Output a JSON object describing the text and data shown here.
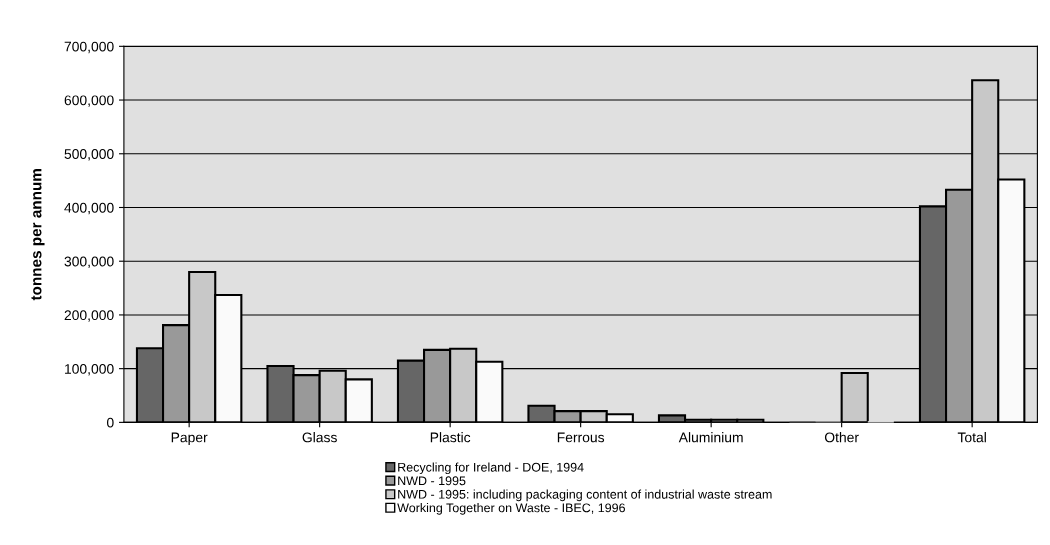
{
  "chart_data": {
    "type": "bar",
    "ylabel": "tonnes per annum",
    "categories": [
      "Paper",
      "Glass",
      "Plastic",
      "Ferrous",
      "Aluminium",
      "Other",
      "Total"
    ],
    "series": [
      {
        "name": "Recycling for Ireland - DOE, 1994",
        "color": "#666666",
        "values": [
          138000,
          105000,
          115000,
          31000,
          13000,
          0,
          402000
        ]
      },
      {
        "name": "NWD - 1995",
        "color": "#999999",
        "values": [
          181000,
          88000,
          135000,
          21000,
          5000,
          0,
          433000
        ]
      },
      {
        "name": "NWD - 1995: including packaging content of industrial waste stream",
        "color": "#c8c8c8",
        "values": [
          280000,
          96000,
          137000,
          21000,
          5000,
          92000,
          637000
        ]
      },
      {
        "name": "Working Together on Waste - IBEC, 1996",
        "color": "#fafafa",
        "values": [
          237000,
          80000,
          113000,
          15000,
          5000,
          0,
          452000
        ]
      }
    ],
    "ylim": [
      0,
      700000
    ],
    "yticks": [
      {
        "value": 0,
        "label": "0"
      },
      {
        "value": 100000,
        "label": "100,000"
      },
      {
        "value": 200000,
        "label": "200,000"
      },
      {
        "value": 300000,
        "label": "300,000"
      },
      {
        "value": 400000,
        "label": "400,000"
      },
      {
        "value": 500000,
        "label": "500,000"
      },
      {
        "value": 600000,
        "label": "600,000"
      },
      {
        "value": 700000,
        "label": "700,000"
      }
    ],
    "grid": "y",
    "legend": "bottom"
  }
}
